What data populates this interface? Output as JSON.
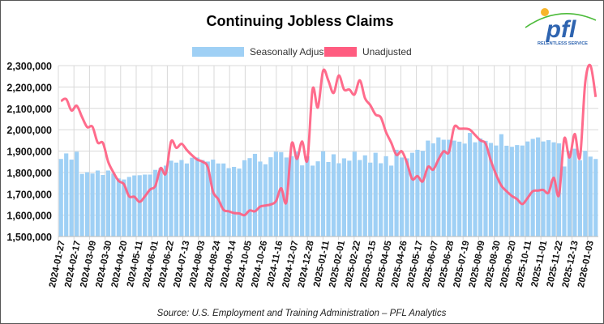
{
  "chart_data": {
    "type": "bar+line",
    "title": "Continuing Jobless Claims",
    "source": "Source: U.S. Employment and Training Administration – PFL Analytics",
    "logo_text": "pfl RELENTLESS SERVICE",
    "xlabel": "",
    "ylabel": "",
    "ylim": [
      1500000,
      2300000
    ],
    "y_ticks": [
      1500000,
      1600000,
      1700000,
      1800000,
      1900000,
      2000000,
      2100000,
      2200000,
      2300000
    ],
    "y_tick_labels": [
      "1,500,000",
      "1,600,000",
      "1,700,000",
      "1,800,000",
      "1,900,000",
      "2,000,000",
      "2,100,000",
      "2,200,000",
      "2,300,000"
    ],
    "grid": true,
    "legend_position": "top-center",
    "x_tick_labels": [
      "2024-01-27",
      "2024-02-17",
      "2024-03-09",
      "2024-03-30",
      "2024-04-20",
      "2024-05-11",
      "2024-06-01",
      "2024-06-22",
      "2024-07-13",
      "2024-08-03",
      "2024-08-24",
      "2024-09-14",
      "2024-10-05",
      "2024-10-26",
      "2024-11-16",
      "2024-12-07",
      "2024-12-28",
      "2025-01-11",
      "2025-02-01",
      "2025-02-22",
      "2025-03-15",
      "2025-04-05",
      "2025-04-26",
      "2025-05-17",
      "2025-06-07",
      "2025-06-28",
      "2025-07-19",
      "2025-08-09",
      "2025-08-30",
      "2025-09-20",
      "2025-10-11",
      "2025-11-01",
      "2025-11-22",
      "2025-12-13",
      "2026-01-03"
    ],
    "series": [
      {
        "name": "Seasonally Adjusted",
        "type": "bar",
        "color": "#9fd0f5",
        "values": [
          1863000,
          1889000,
          1860000,
          1897000,
          1793000,
          1801000,
          1795000,
          1809000,
          1788000,
          1809000,
          1795000,
          1772000,
          1767000,
          1779000,
          1786000,
          1787000,
          1790000,
          1790000,
          1812000,
          1821000,
          1832000,
          1855000,
          1846000,
          1858000,
          1842000,
          1869000,
          1870000,
          1858000,
          1851000,
          1860000,
          1842000,
          1842000,
          1820000,
          1826000,
          1818000,
          1857000,
          1867000,
          1887000,
          1851000,
          1838000,
          1871000,
          1897000,
          1895000,
          1870000,
          1876000,
          1897000,
          1833000,
          1876000,
          1832000,
          1852000,
          1899000,
          1849000,
          1885000,
          1843000,
          1866000,
          1855000,
          1897000,
          1858000,
          1880000,
          1846000,
          1892000,
          1843000,
          1876000,
          1832000,
          1906000,
          1870000,
          1866000,
          1892000,
          1906000,
          1901000,
          1949000,
          1936000,
          1964000,
          1953000,
          1953000,
          1949000,
          1944000,
          1935000,
          1985000,
          1941000,
          1959000,
          1948000,
          1938000,
          1926000,
          1979000,
          1925000,
          1920000,
          1928000,
          1926000,
          1945000,
          1957000,
          1964000,
          1945000,
          1951000,
          1941000,
          1936000,
          1828000,
          1901000,
          1911000,
          1857000,
          1901000,
          1874000,
          1863000
        ]
      },
      {
        "name": "Unadjusted",
        "type": "line",
        "color": "#ff5c80",
        "values": [
          2134000,
          2143000,
          2090000,
          2112000,
          2060000,
          2012000,
          2014000,
          1940000,
          1938000,
          1850000,
          1800000,
          1760000,
          1745000,
          1688000,
          1686000,
          1662000,
          1688000,
          1720000,
          1737000,
          1820000,
          1795000,
          1945000,
          1915000,
          1934000,
          1905000,
          1880000,
          1860000,
          1850000,
          1825000,
          1710000,
          1675000,
          1625000,
          1618000,
          1610000,
          1608000,
          1600000,
          1622000,
          1618000,
          1640000,
          1645000,
          1650000,
          1665000,
          1726000,
          1662000,
          1934000,
          1863000,
          1945000,
          1858000,
          2190000,
          2104000,
          2276000,
          2230000,
          2172000,
          2254000,
          2188000,
          2188000,
          2165000,
          2231000,
          2147000,
          2115000,
          2071000,
          2058000,
          1989000,
          1939000,
          1882000,
          1899000,
          1845000,
          1769000,
          1783000,
          1758000,
          1826000,
          1813000,
          1860000,
          1899000,
          1895000,
          2012000,
          2005000,
          2005000,
          2000000,
          1975000,
          1950000,
          1935000,
          1855000,
          1790000,
          1738000,
          1712000,
          1690000,
          1675000,
          1652000,
          1680000,
          1712000,
          1715000,
          1718000,
          1705000,
          1775000,
          1694000,
          1958000,
          1870000,
          1980000,
          1870000,
          2220000,
          2300000,
          2153000
        ]
      }
    ]
  }
}
